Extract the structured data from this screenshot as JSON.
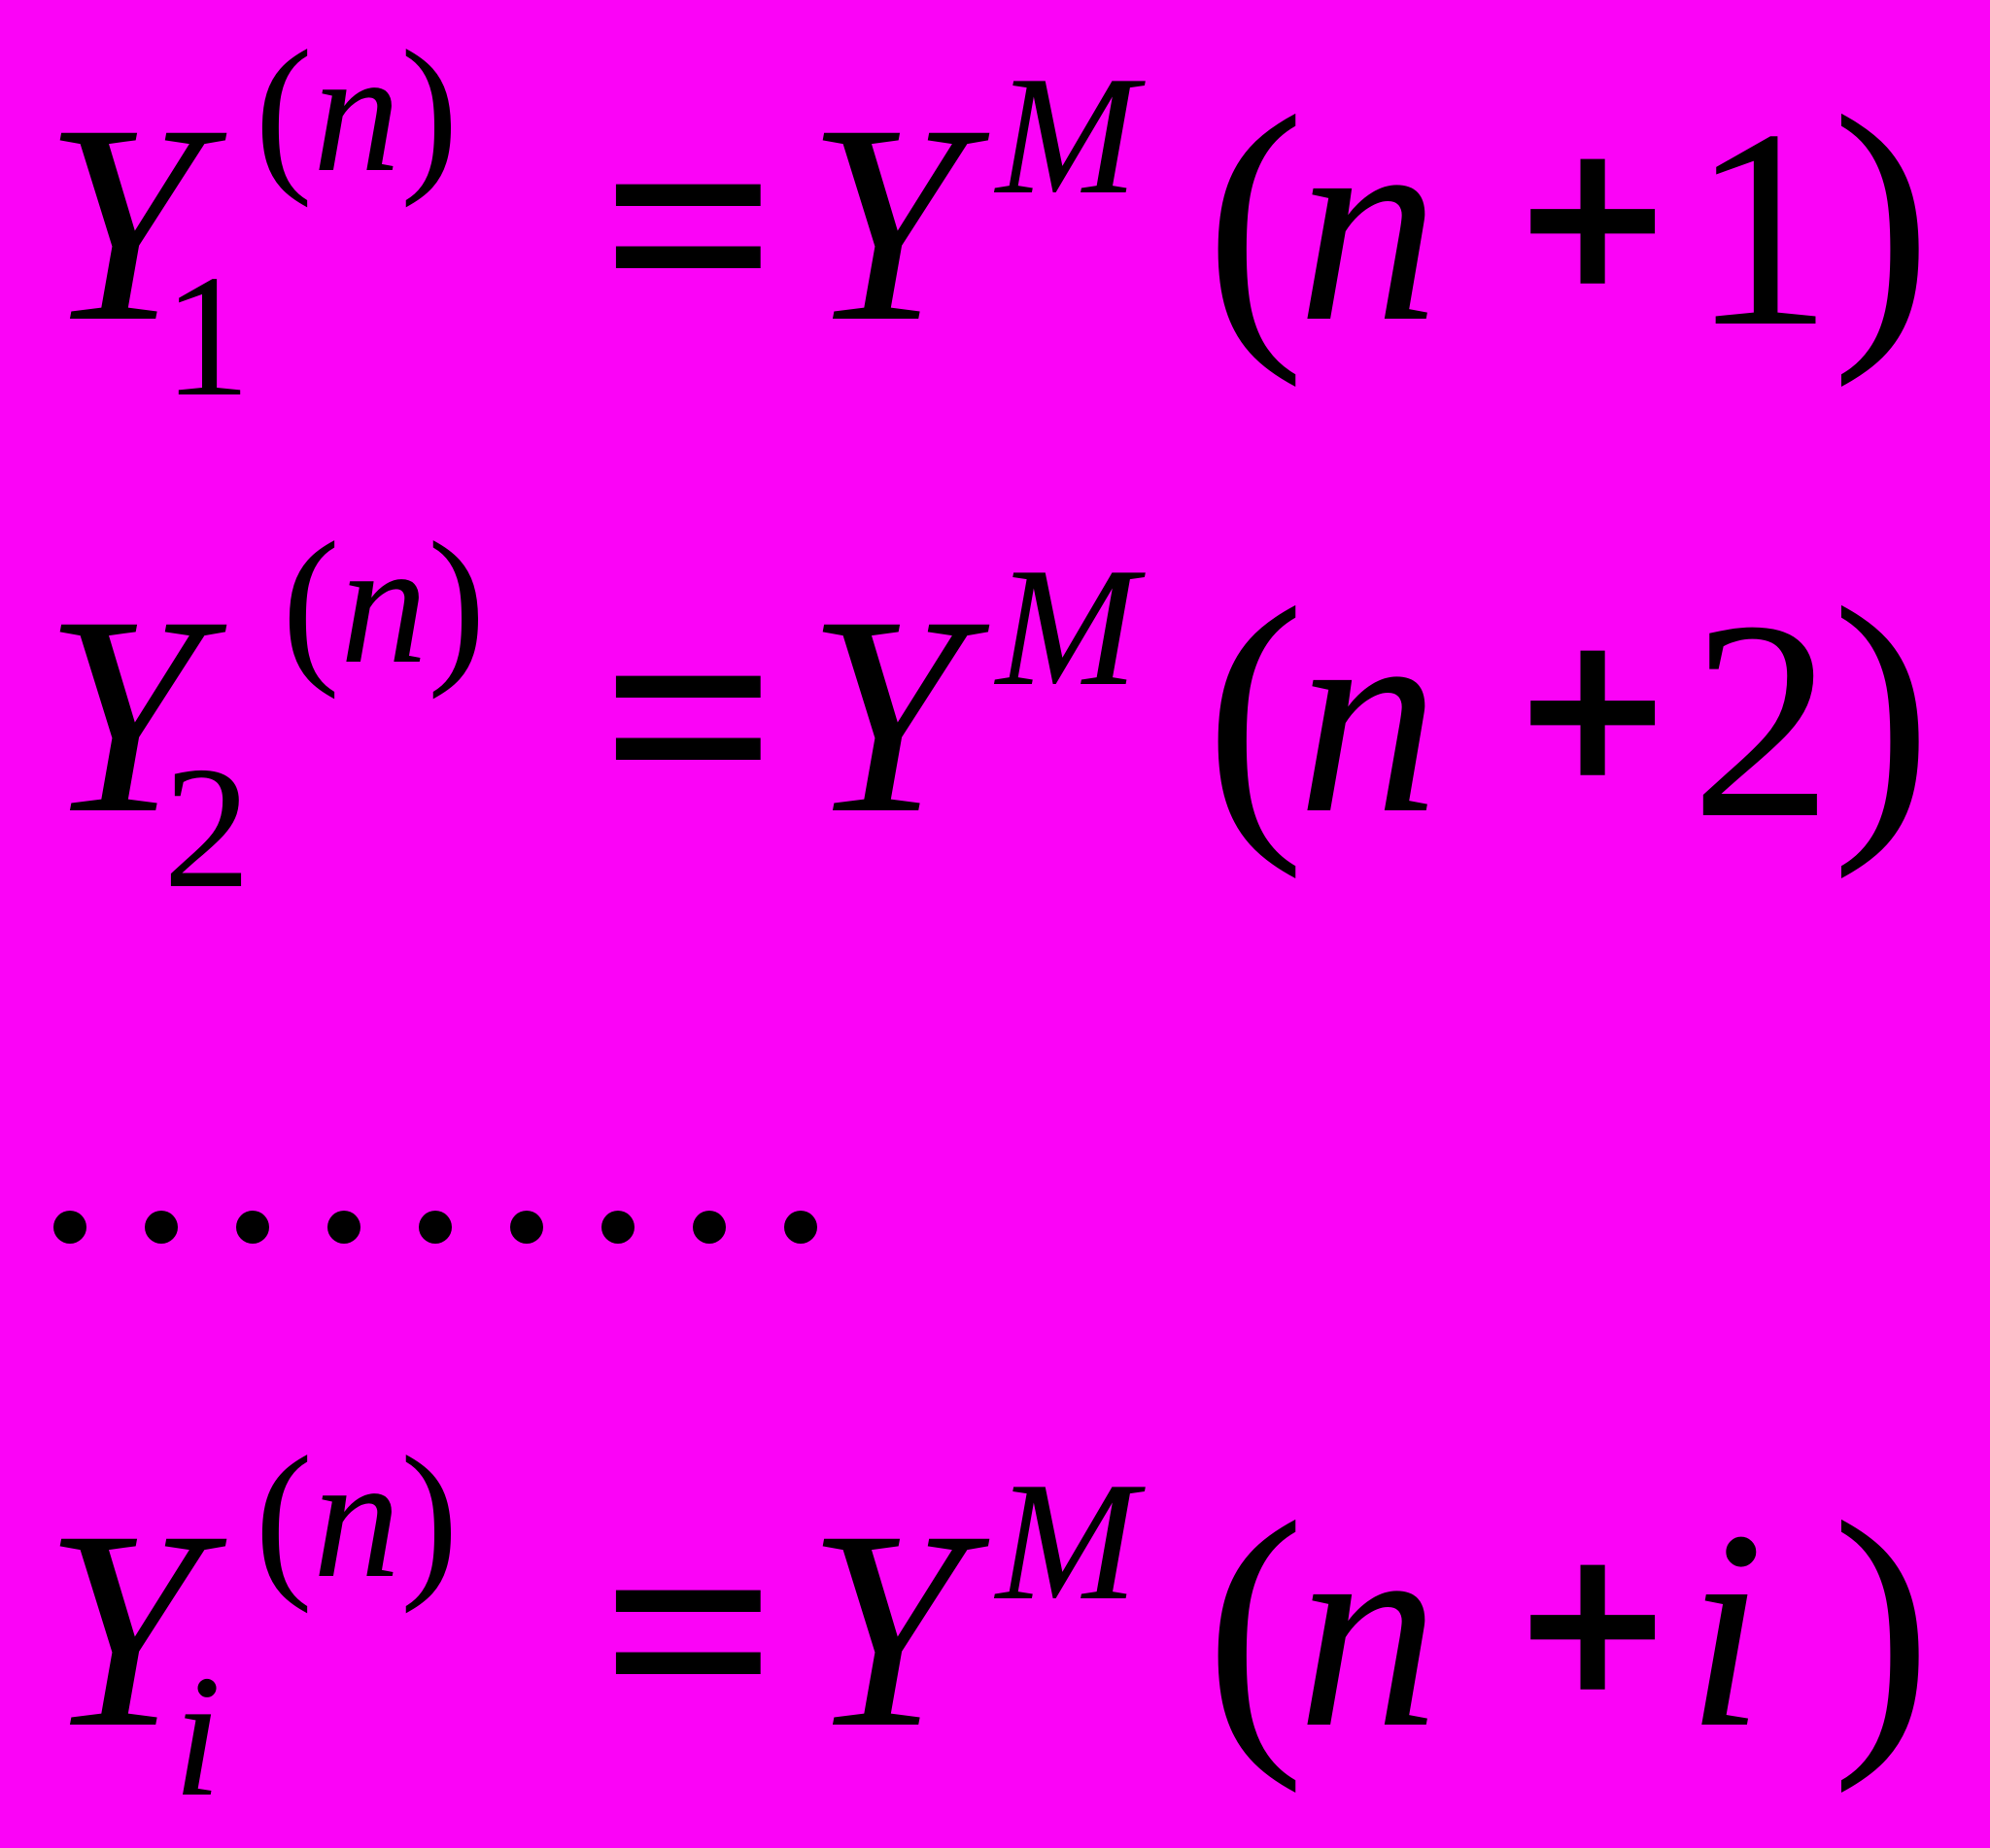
{
  "canvas": {
    "background_color": "#FB03F7",
    "ink_color": "#000000"
  },
  "equations": [
    {
      "name": "equation-1",
      "lhs_base": "Y",
      "lhs_sub": "1",
      "sup_open": "(",
      "sup_var": "n",
      "sup_close": ")",
      "equals": "=",
      "rhs_base": "Y",
      "rhs_sup": "M",
      "open_paren": "(",
      "arg_var": "n",
      "plus": "+",
      "arg_offset": "1",
      "close_paren": ")"
    },
    {
      "name": "equation-2",
      "lhs_base": "Y",
      "lhs_sub": "2",
      "sup_open": "(",
      "sup_var": "n",
      "sup_close": ")",
      "equals": "=",
      "rhs_base": "Y",
      "rhs_sup": "M",
      "open_paren": "(",
      "arg_var": "n",
      "plus": "+",
      "arg_offset": "2",
      "close_paren": ")"
    },
    {
      "name": "equation-3",
      "lhs_base": "Y",
      "lhs_sub": "i",
      "sup_open": "(",
      "sup_var": "n",
      "sup_close": ")",
      "equals": "=",
      "rhs_base": "Y",
      "rhs_sup": "M",
      "open_paren": "(",
      "arg_var": "n",
      "plus": "+",
      "arg_offset": "i",
      "close_paren": ")"
    }
  ],
  "ellipsis": {
    "dot_count": 9
  }
}
